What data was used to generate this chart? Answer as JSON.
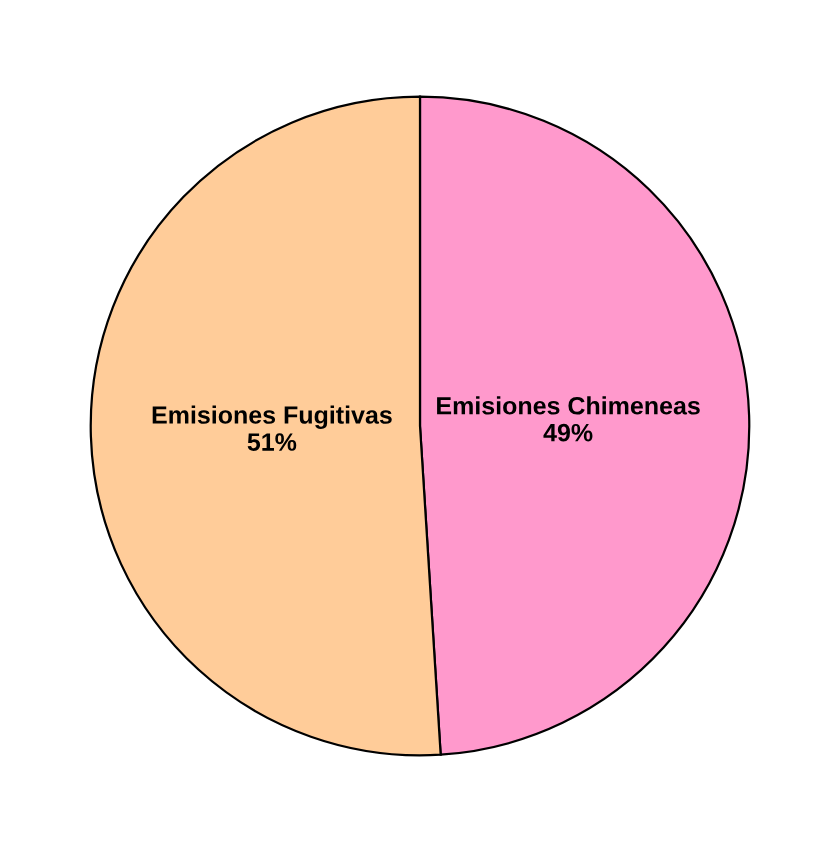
{
  "chart_data": {
    "type": "pie",
    "categories": [
      "Emisiones Chimeneas",
      "Emisiones Fugitivas"
    ],
    "values": [
      49,
      51
    ],
    "colors": [
      "#ff99cc",
      "#ffcc99"
    ],
    "value_labels": [
      "49%",
      "51%"
    ],
    "legend": false
  }
}
